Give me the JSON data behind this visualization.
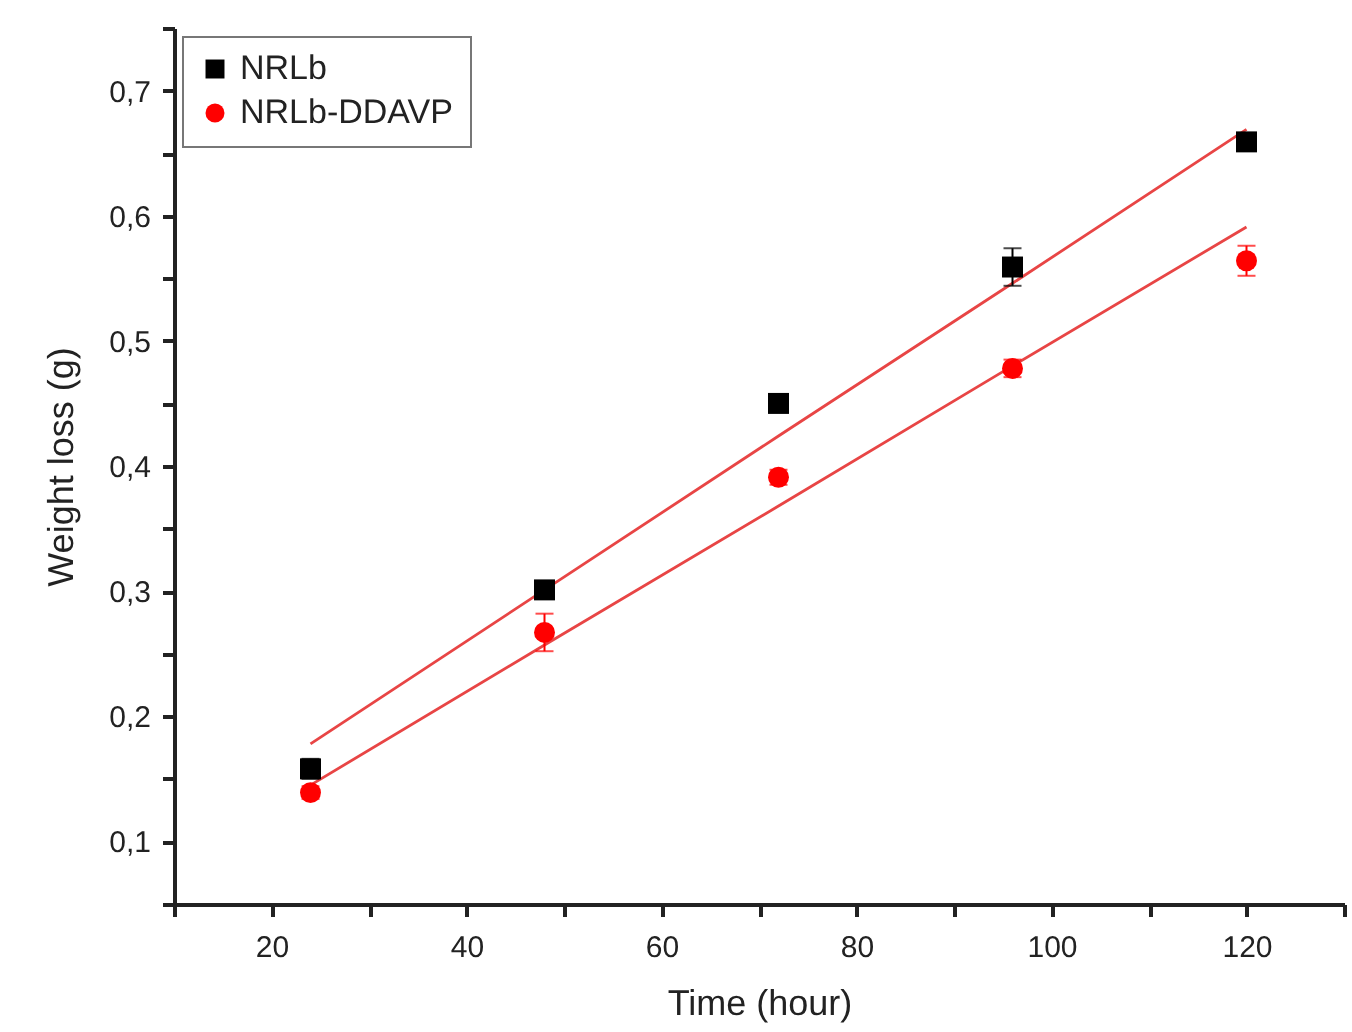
{
  "chart_data": {
    "type": "scatter",
    "xlabel": "Time (hour)",
    "ylabel": "Weight loss (g)",
    "x": [
      24,
      48,
      72,
      96,
      120
    ],
    "series": [
      {
        "name": "NRLb",
        "color": "#000000",
        "marker": "square",
        "values": [
          0.158,
          0.301,
          0.45,
          0.559,
          0.659
        ],
        "errors": [
          0.008,
          0.007,
          null,
          0.015,
          0.005
        ]
      },
      {
        "name": "NRLb-DDAVP",
        "color": "#ff0000",
        "marker": "circle",
        "values": [
          0.139,
          0.267,
          0.391,
          0.478,
          0.564
        ],
        "errors": [
          0.005,
          0.015,
          0.006,
          0.007,
          0.012
        ]
      },
      {
        "type": "line",
        "color": "#e84545",
        "values": [
          0.178,
          0.301,
          0.424,
          0.546,
          0.669
        ]
      },
      {
        "type": "line",
        "color": "#e84545",
        "values": [
          0.145,
          0.257,
          0.368,
          0.48,
          0.591
        ]
      }
    ],
    "xlim": [
      10,
      130
    ],
    "xticks": [
      {
        "value": 10,
        "label": null
      },
      20,
      {
        "value": 30,
        "label": null
      },
      40,
      {
        "value": 50,
        "label": null
      },
      60,
      {
        "value": 70,
        "label": null
      },
      80,
      {
        "value": 90,
        "label": null
      },
      100,
      {
        "value": 110,
        "label": null
      },
      120,
      {
        "value": 130,
        "label": null
      }
    ],
    "ylim": [
      0.05,
      0.75
    ],
    "yticks": [
      {
        "value": 0.05,
        "label": null
      },
      {
        "value": 0.1,
        "label": "0,1"
      },
      {
        "value": 0.15,
        "label": null
      },
      {
        "value": 0.2,
        "label": "0,2"
      },
      {
        "value": 0.25,
        "label": null
      },
      {
        "value": 0.3,
        "label": "0,3"
      },
      {
        "value": 0.35,
        "label": null
      },
      {
        "value": 0.4,
        "label": "0,4"
      },
      {
        "value": 0.45,
        "label": null
      },
      {
        "value": 0.5,
        "label": "0,5"
      },
      {
        "value": 0.55,
        "label": null
      },
      {
        "value": 0.6,
        "label": "0,6"
      },
      {
        "value": 0.65,
        "label": null
      },
      {
        "value": 0.7,
        "label": "0,7"
      },
      {
        "value": 0.75,
        "label": null
      }
    ],
    "grid": false,
    "legend": "top left"
  }
}
